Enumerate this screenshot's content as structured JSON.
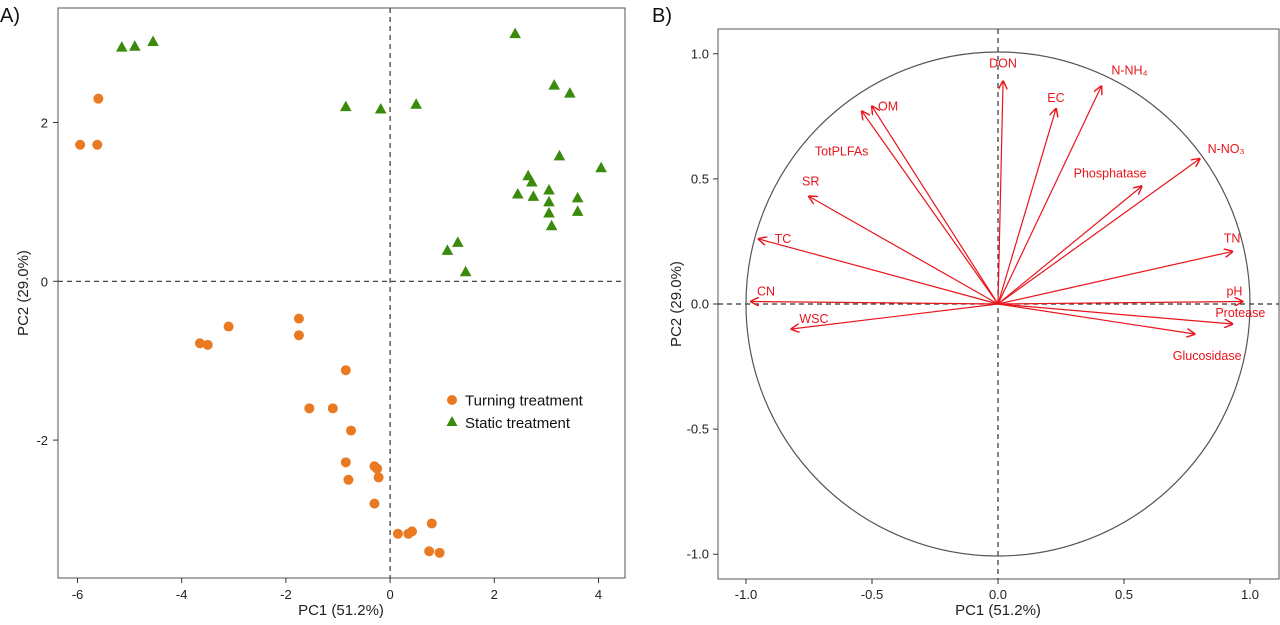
{
  "chart_data": [
    {
      "panel": "A)",
      "type": "scatter",
      "xlabel": "PC1 (51.2%)",
      "ylabel": "PC2 (29.0%)",
      "xlim": [
        -6.2,
        4.4
      ],
      "ylim": [
        -3.7,
        3.5
      ],
      "xticks": [
        -6,
        -4,
        -2,
        0,
        2,
        4
      ],
      "yticks": [
        -2,
        0,
        2
      ],
      "reference_lines": {
        "x": 0,
        "y": 0,
        "style": "dashed"
      },
      "legend_position": "center-right",
      "colors": {
        "Turning treatment": "#ea7a22",
        "Static treatment": "#3a8a0c"
      },
      "series": [
        {
          "name": "Turning treatment",
          "marker": "circle",
          "points": [
            [
              -5.95,
              1.72
            ],
            [
              -5.62,
              1.72
            ],
            [
              -5.6,
              2.3
            ],
            [
              -3.65,
              -0.78
            ],
            [
              -3.5,
              -0.8
            ],
            [
              -3.1,
              -0.57
            ],
            [
              -1.75,
              -0.47
            ],
            [
              -1.75,
              -0.68
            ],
            [
              -1.55,
              -1.6
            ],
            [
              -1.1,
              -1.6
            ],
            [
              -0.85,
              -1.12
            ],
            [
              -0.75,
              -1.88
            ],
            [
              -0.85,
              -2.28
            ],
            [
              -0.8,
              -2.5
            ],
            [
              -0.3,
              -2.33
            ],
            [
              -0.25,
              -2.36
            ],
            [
              -0.22,
              -2.47
            ],
            [
              -0.3,
              -2.8
            ],
            [
              0.15,
              -3.18
            ],
            [
              0.35,
              -3.18
            ],
            [
              0.42,
              -3.15
            ],
            [
              0.8,
              -3.05
            ],
            [
              0.75,
              -3.4
            ],
            [
              0.95,
              -3.42
            ]
          ]
        },
        {
          "name": "Static treatment",
          "marker": "triangle",
          "points": [
            [
              -5.15,
              2.95
            ],
            [
              -4.9,
              2.96
            ],
            [
              -4.55,
              3.02
            ],
            [
              -0.85,
              2.2
            ],
            [
              -0.18,
              2.17
            ],
            [
              0.5,
              2.23
            ],
            [
              2.4,
              3.12
            ],
            [
              3.15,
              2.47
            ],
            [
              3.45,
              2.37
            ],
            [
              3.25,
              1.58
            ],
            [
              4.05,
              1.43
            ],
            [
              2.65,
              1.33
            ],
            [
              2.72,
              1.25
            ],
            [
              2.45,
              1.1
            ],
            [
              2.75,
              1.07
            ],
            [
              3.05,
              1.15
            ],
            [
              3.05,
              1.0
            ],
            [
              3.05,
              0.86
            ],
            [
              3.1,
              0.7
            ],
            [
              3.6,
              1.05
            ],
            [
              3.6,
              0.88
            ],
            [
              1.1,
              0.39
            ],
            [
              1.3,
              0.49
            ],
            [
              1.45,
              0.12
            ]
          ]
        }
      ]
    },
    {
      "panel": "B)",
      "type": "biplot",
      "xlabel": "PC1 (51.2%)",
      "ylabel": "PC2 (29.0%)",
      "xlim": [
        -1.1,
        1.1
      ],
      "ylim": [
        -1.1,
        1.1
      ],
      "xticks": [
        -1.0,
        -0.5,
        0.0,
        0.5,
        1.0
      ],
      "yticks": [
        -1.0,
        -0.5,
        0.0,
        0.5,
        1.0
      ],
      "tick_labels": [
        "-1.0",
        "-0.5",
        "0.0",
        "0.5",
        "1.0"
      ],
      "circle_radius": 1.0,
      "arrow_color": "#e8151b",
      "vectors": [
        {
          "name": "DON",
          "x": 0.02,
          "y": 0.89
        },
        {
          "name": "N-NH₄",
          "x": 0.41,
          "y": 0.87
        },
        {
          "name": "EC",
          "x": 0.23,
          "y": 0.78
        },
        {
          "name": "OM",
          "x": -0.5,
          "y": 0.79
        },
        {
          "name": "TotPLFAs",
          "x": -0.54,
          "y": 0.77
        },
        {
          "name": "N-NO₃",
          "x": 0.8,
          "y": 0.58
        },
        {
          "name": "Phosphatase",
          "x": 0.57,
          "y": 0.47
        },
        {
          "name": "SR",
          "x": -0.75,
          "y": 0.43
        },
        {
          "name": "TC",
          "x": -0.95,
          "y": 0.26
        },
        {
          "name": "TN",
          "x": 0.93,
          "y": 0.21
        },
        {
          "name": "CN",
          "x": -0.98,
          "y": 0.01
        },
        {
          "name": "pH",
          "x": 0.97,
          "y": 0.01
        },
        {
          "name": "WSC",
          "x": -0.82,
          "y": -0.1
        },
        {
          "name": "Protease",
          "x": 0.93,
          "y": -0.08
        },
        {
          "name": "Glucosidase",
          "x": 0.78,
          "y": -0.12
        }
      ]
    }
  ]
}
